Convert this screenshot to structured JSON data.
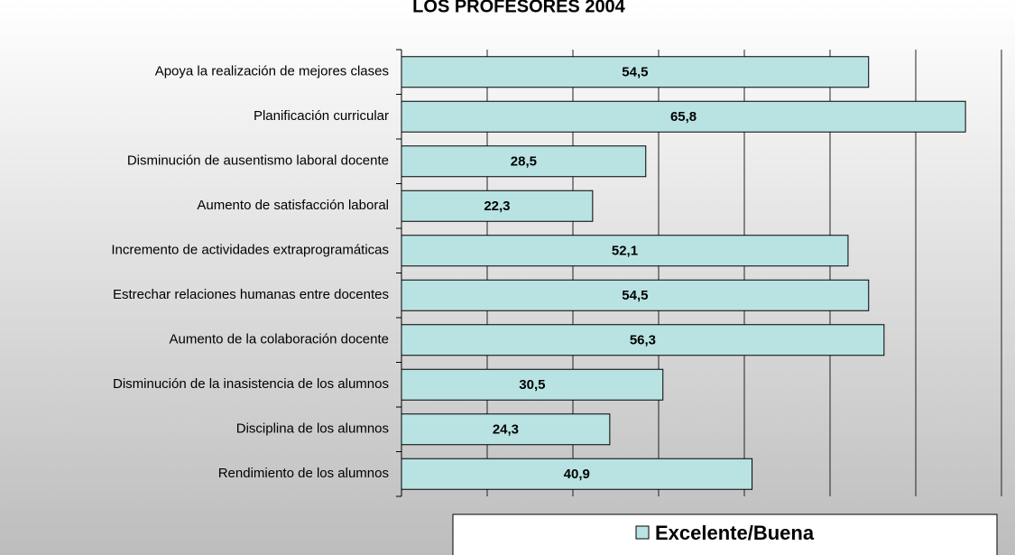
{
  "chart_data": {
    "type": "bar",
    "orientation": "horizontal",
    "title": "LOS PROFESORES 2004",
    "categories": [
      "Apoya la realización de mejores clases",
      "Planificación curricular",
      "Disminución de ausentismo laboral docente",
      "Aumento de satisfacción laboral",
      "Incremento de actividades extraprogramáticas",
      "Estrechar relaciones humanas entre docentes",
      "Aumento de la colaboración docente",
      "Disminución de la inasistencia de los alumnos",
      "Disciplina de los alumnos",
      "Rendimiento de los alumnos"
    ],
    "series": [
      {
        "name": "Excelente/Buena",
        "color": "#b9e3e3",
        "values": [
          54.5,
          65.8,
          28.5,
          22.3,
          52.1,
          54.5,
          56.3,
          30.5,
          24.3,
          40.9
        ],
        "value_labels": [
          "54,5",
          "65,8",
          "28,5",
          "22,3",
          "52,1",
          "54,5",
          "56,3",
          "30,5",
          "24,3",
          "40,9"
        ]
      }
    ],
    "xlim": [
      0,
      70
    ],
    "xticks": [
      0,
      10,
      20,
      30,
      40,
      50,
      60,
      70
    ],
    "grid": true,
    "legend": "bottom"
  }
}
